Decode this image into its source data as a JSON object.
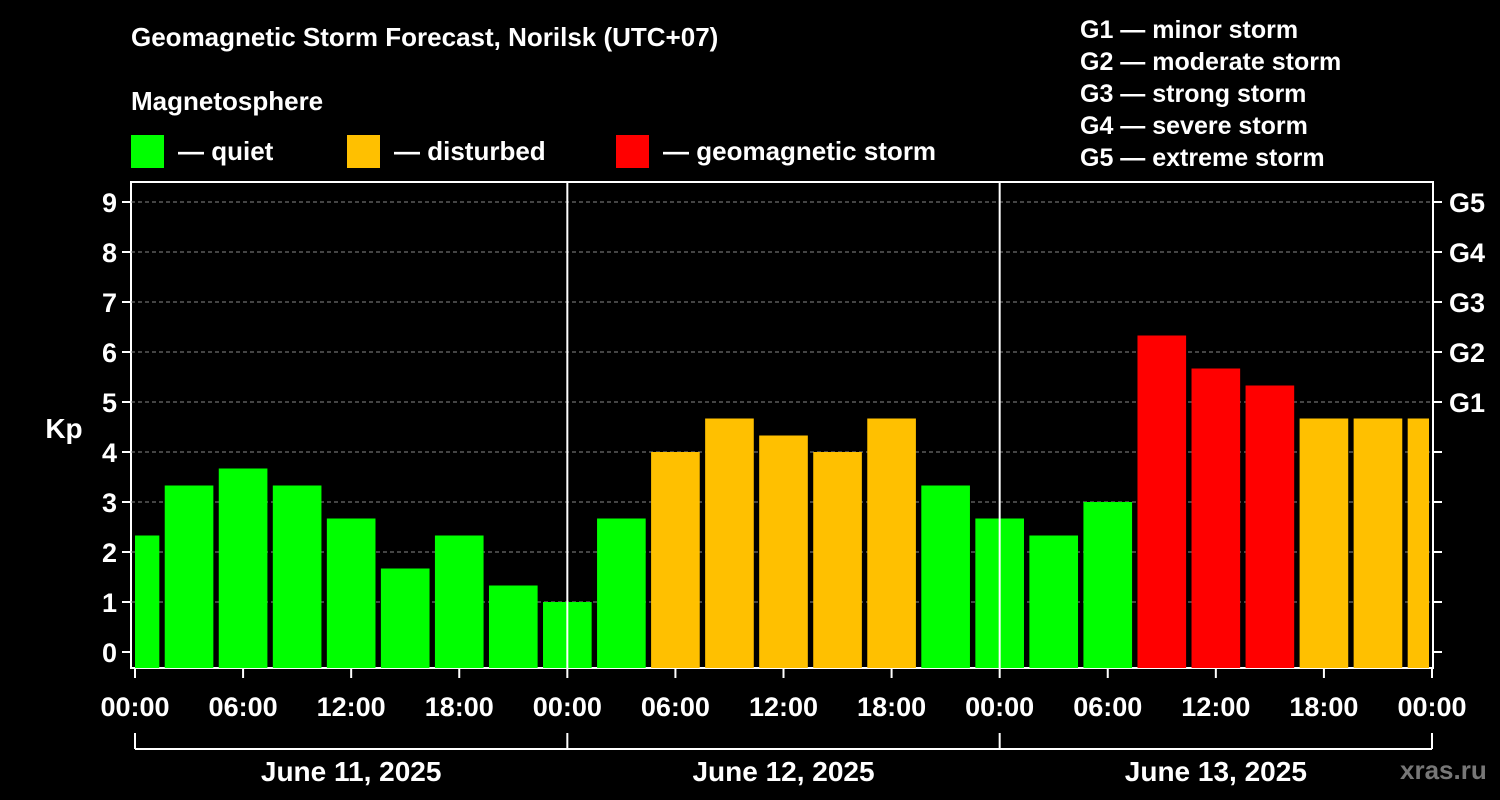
{
  "title": "Geomagnetic Storm Forecast, Norilsk (UTC+07)",
  "subtitle": "Magnetosphere",
  "legend": [
    {
      "label": "— quiet",
      "color": "#00ff00"
    },
    {
      "label": "— disturbed",
      "color": "#ffc000"
    },
    {
      "label": "— geomagnetic storm",
      "color": "#ff0000"
    }
  ],
  "storm_levels": [
    "G1 — minor storm",
    "G2 — moderate storm",
    "G3 — strong storm",
    "G4 — severe storm",
    "G5 — extreme storm"
  ],
  "watermark": "xras.ru",
  "chart_data": {
    "type": "bar",
    "ylabel": "Kp",
    "ylim": [
      -0.33,
      9.33
    ],
    "yticks": [
      0,
      1,
      2,
      3,
      4,
      5,
      6,
      7,
      8,
      9
    ],
    "g_scale": [
      {
        "label": "G1",
        "kp": 5
      },
      {
        "label": "G2",
        "kp": 6
      },
      {
        "label": "G3",
        "kp": 7
      },
      {
        "label": "G4",
        "kp": 8
      },
      {
        "label": "G5",
        "kp": 9
      }
    ],
    "x_tick_labels": [
      "00:00",
      "06:00",
      "12:00",
      "18:00",
      "00:00",
      "06:00",
      "12:00",
      "18:00",
      "00:00",
      "06:00",
      "12:00",
      "18:00",
      "00:00"
    ],
    "day_labels": [
      "June 11, 2025",
      "June 12, 2025",
      "June 13, 2025"
    ],
    "bars": [
      {
        "time": "June 11, 2025 00:00",
        "kp": 2.33,
        "level": "quiet"
      },
      {
        "time": "June 11, 2025 03:00",
        "kp": 3.33,
        "level": "quiet"
      },
      {
        "time": "June 11, 2025 06:00",
        "kp": 3.67,
        "level": "quiet"
      },
      {
        "time": "June 11, 2025 09:00",
        "kp": 3.33,
        "level": "quiet"
      },
      {
        "time": "June 11, 2025 12:00",
        "kp": 2.67,
        "level": "quiet"
      },
      {
        "time": "June 11, 2025 15:00",
        "kp": 1.67,
        "level": "quiet"
      },
      {
        "time": "June 11, 2025 18:00",
        "kp": 2.33,
        "level": "quiet"
      },
      {
        "time": "June 11, 2025 21:00",
        "kp": 1.33,
        "level": "quiet"
      },
      {
        "time": "June 12, 2025 00:00",
        "kp": 1.0,
        "level": "quiet"
      },
      {
        "time": "June 12, 2025 03:00",
        "kp": 2.67,
        "level": "quiet"
      },
      {
        "time": "June 12, 2025 06:00",
        "kp": 4.0,
        "level": "disturbed"
      },
      {
        "time": "June 12, 2025 09:00",
        "kp": 4.67,
        "level": "disturbed"
      },
      {
        "time": "June 12, 2025 12:00",
        "kp": 4.33,
        "level": "disturbed"
      },
      {
        "time": "June 12, 2025 15:00",
        "kp": 4.0,
        "level": "disturbed"
      },
      {
        "time": "June 12, 2025 18:00",
        "kp": 4.67,
        "level": "disturbed"
      },
      {
        "time": "June 12, 2025 21:00",
        "kp": 3.33,
        "level": "quiet"
      },
      {
        "time": "June 13, 2025 00:00",
        "kp": 2.67,
        "level": "quiet"
      },
      {
        "time": "June 13, 2025 03:00",
        "kp": 2.33,
        "level": "quiet"
      },
      {
        "time": "June 13, 2025 06:00",
        "kp": 3.0,
        "level": "quiet"
      },
      {
        "time": "June 13, 2025 09:00",
        "kp": 6.33,
        "level": "storm"
      },
      {
        "time": "June 13, 2025 12:00",
        "kp": 5.67,
        "level": "storm"
      },
      {
        "time": "June 13, 2025 15:00",
        "kp": 5.33,
        "level": "storm"
      },
      {
        "time": "June 13, 2025 18:00",
        "kp": 4.67,
        "level": "disturbed"
      },
      {
        "time": "June 13, 2025 21:00",
        "kp": 4.67,
        "level": "disturbed"
      },
      {
        "time": "June 14, 2025 00:00",
        "kp": 4.67,
        "level": "disturbed"
      }
    ],
    "level_colors": {
      "quiet": "#00ff00",
      "disturbed": "#ffc000",
      "storm": "#ff0000"
    },
    "grid": "dashed at integer Kp"
  }
}
